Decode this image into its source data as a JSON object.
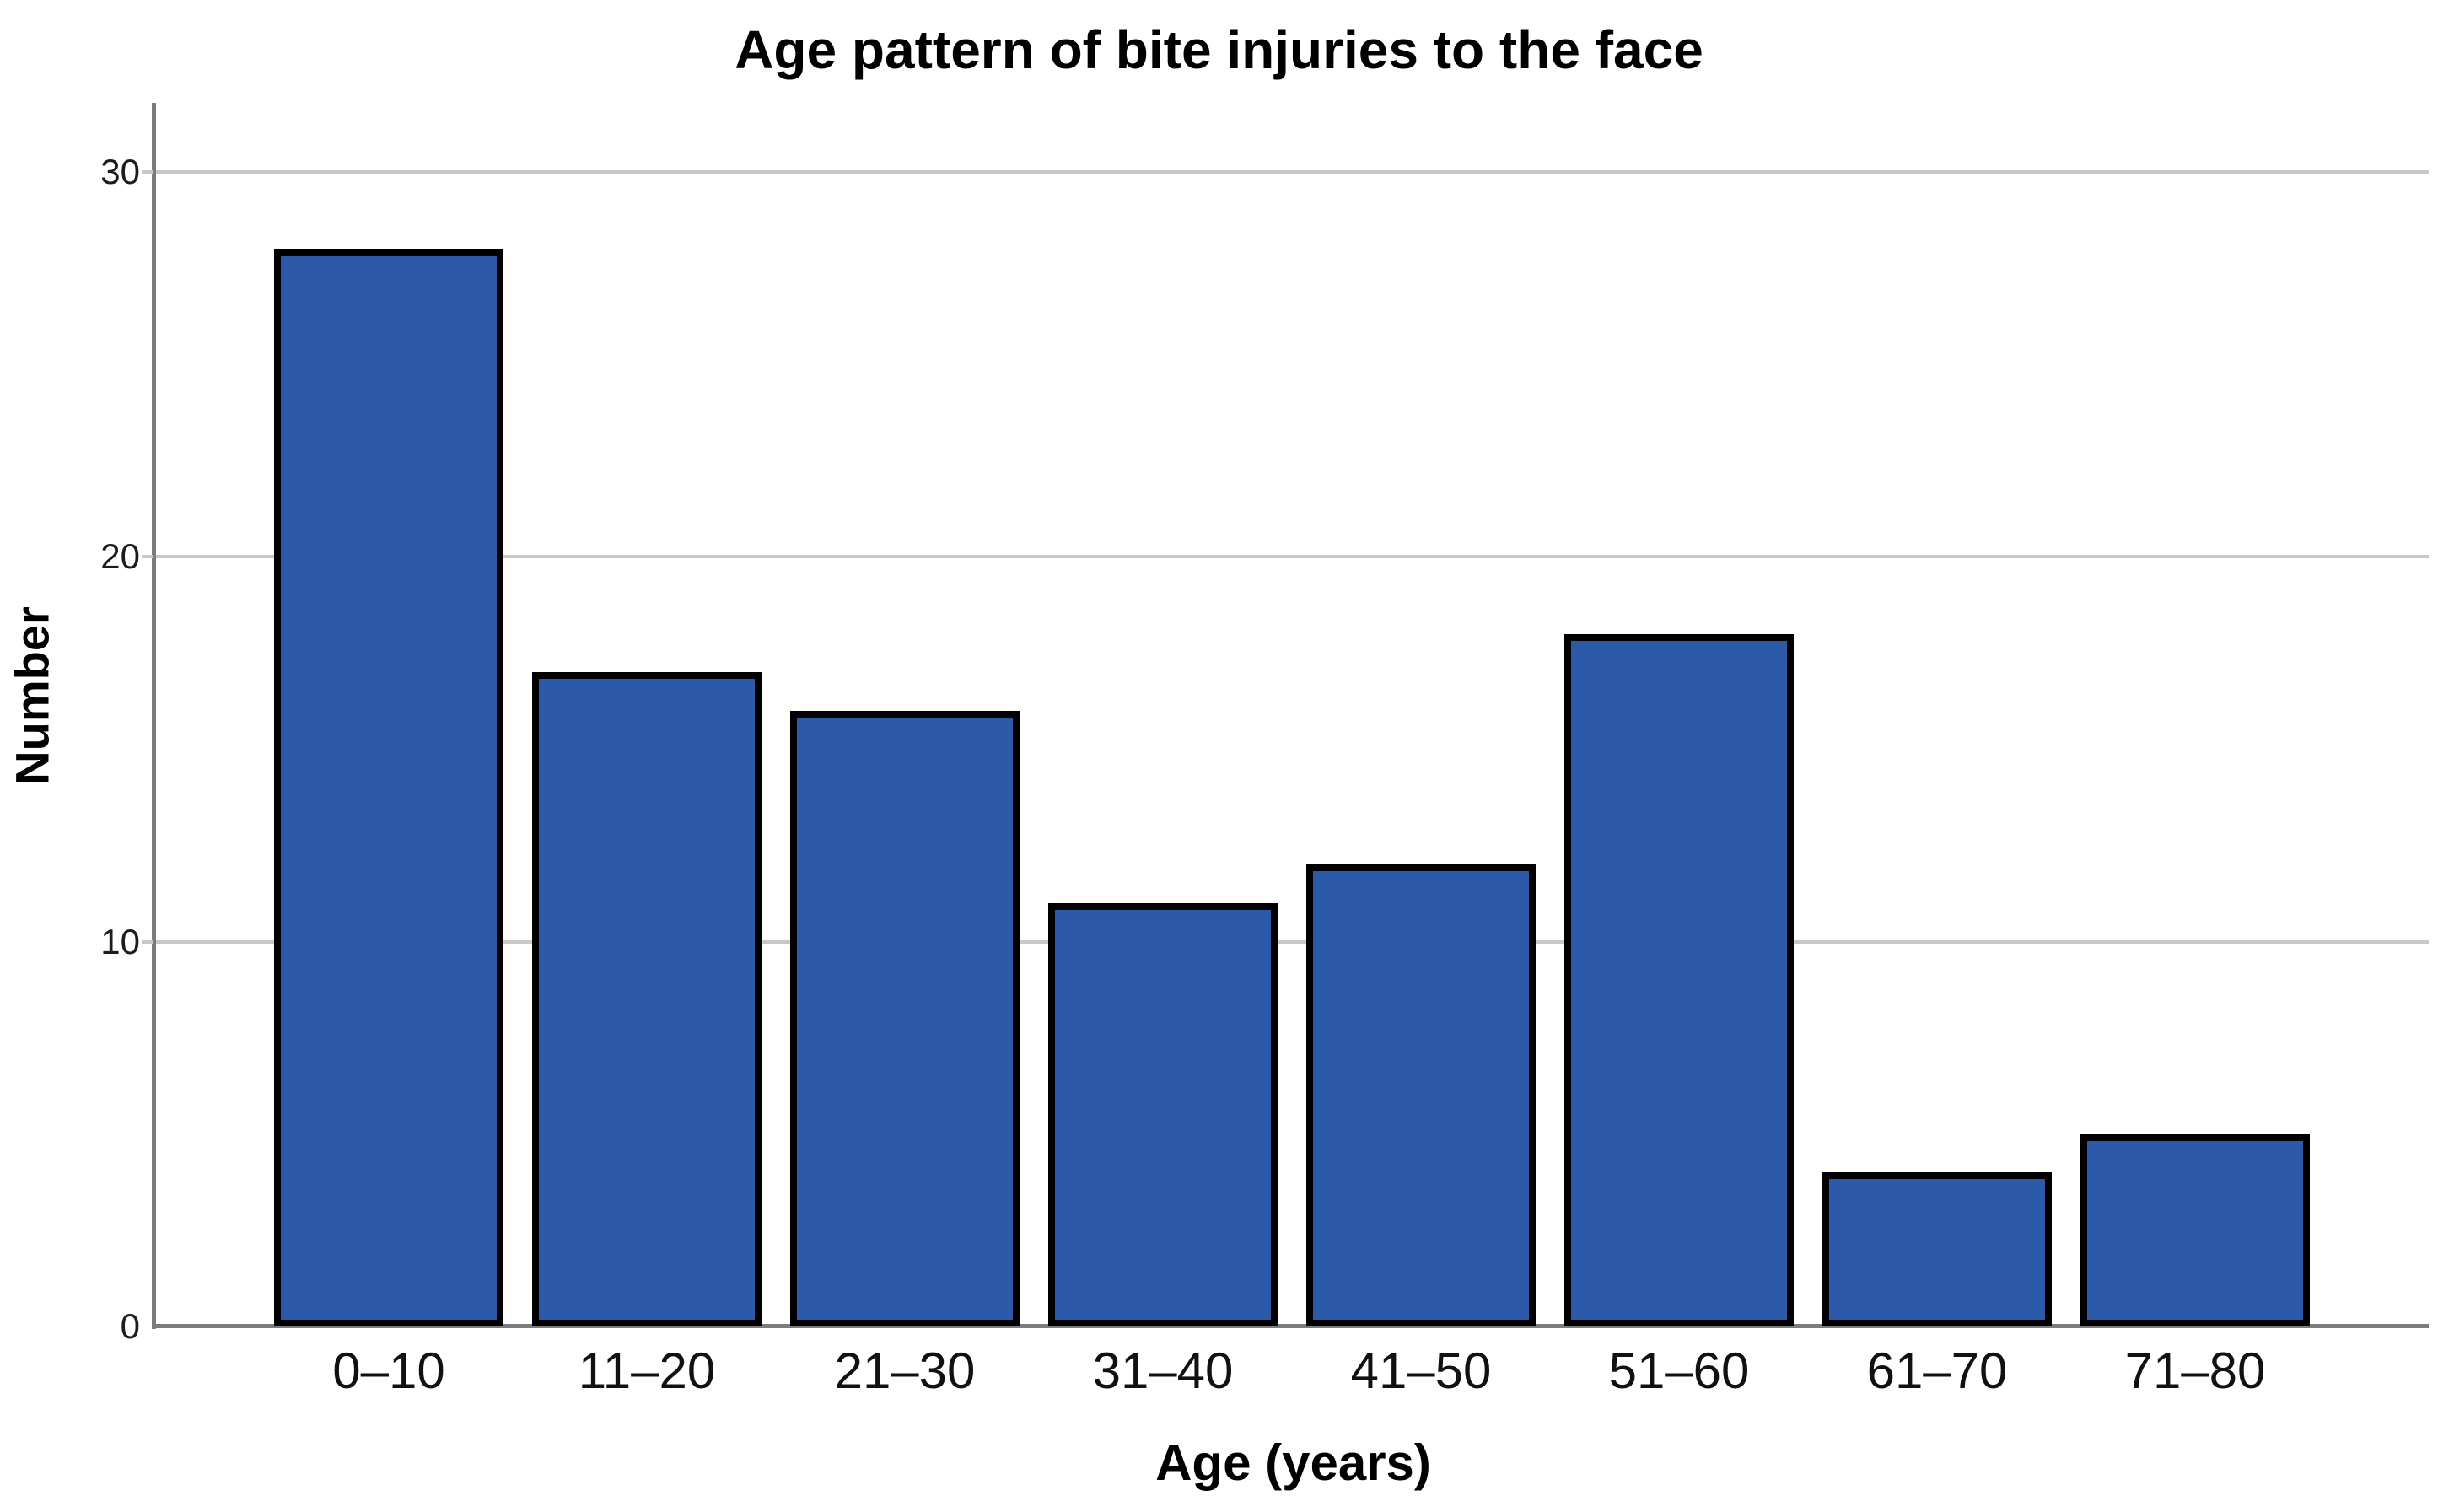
{
  "chart_data": {
    "type": "bar",
    "title": "Age pattern of bite injuries to the face",
    "xlabel": "Age (years)",
    "ylabel": "Number",
    "categories": [
      "0–10",
      "11–20",
      "21–30",
      "31–40",
      "41–50",
      "51–60",
      "61–70",
      "71–80"
    ],
    "values": [
      28,
      17,
      16,
      11,
      12,
      18,
      4,
      5
    ],
    "yticks": [
      0,
      10,
      20,
      30
    ],
    "ylim": [
      0,
      31.8
    ],
    "grid": true,
    "legend": "none",
    "colors": {
      "bar_fill": "#2D5AA8",
      "bar_border": "#000000",
      "gridline": "#C8C8C8",
      "axis": "#7C7C7C",
      "text": "#000000"
    }
  }
}
